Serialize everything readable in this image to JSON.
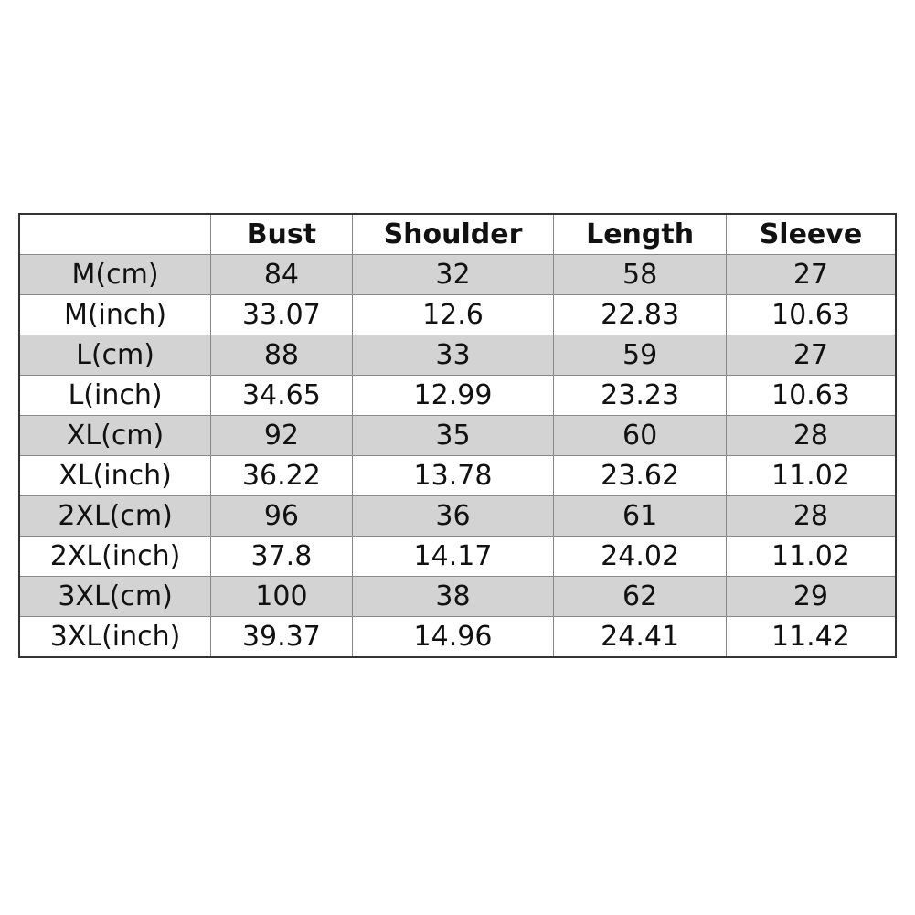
{
  "table": {
    "headers": [
      "",
      "Bust",
      "Shoulder",
      "Length",
      "Sleeve"
    ],
    "rows": [
      [
        "M(cm)",
        "84",
        "32",
        "58",
        "27"
      ],
      [
        "M(inch)",
        "33.07",
        "12.6",
        "22.83",
        "10.63"
      ],
      [
        "L(cm)",
        "88",
        "33",
        "59",
        "27"
      ],
      [
        "L(inch)",
        "34.65",
        "12.99",
        "23.23",
        "10.63"
      ],
      [
        "XL(cm)",
        "92",
        "35",
        "60",
        "28"
      ],
      [
        "XL(inch)",
        "36.22",
        "13.78",
        "23.62",
        "11.02"
      ],
      [
        "2XL(cm)",
        "96",
        "36",
        "61",
        "28"
      ],
      [
        "2XL(inch)",
        "37.8",
        "14.17",
        "24.02",
        "11.02"
      ],
      [
        "3XL(cm)",
        "100",
        "38",
        "62",
        "29"
      ],
      [
        "3XL(inch)",
        "39.37",
        "14.96",
        "24.41",
        "11.42"
      ]
    ],
    "shade_color": "#d3d3d3"
  }
}
